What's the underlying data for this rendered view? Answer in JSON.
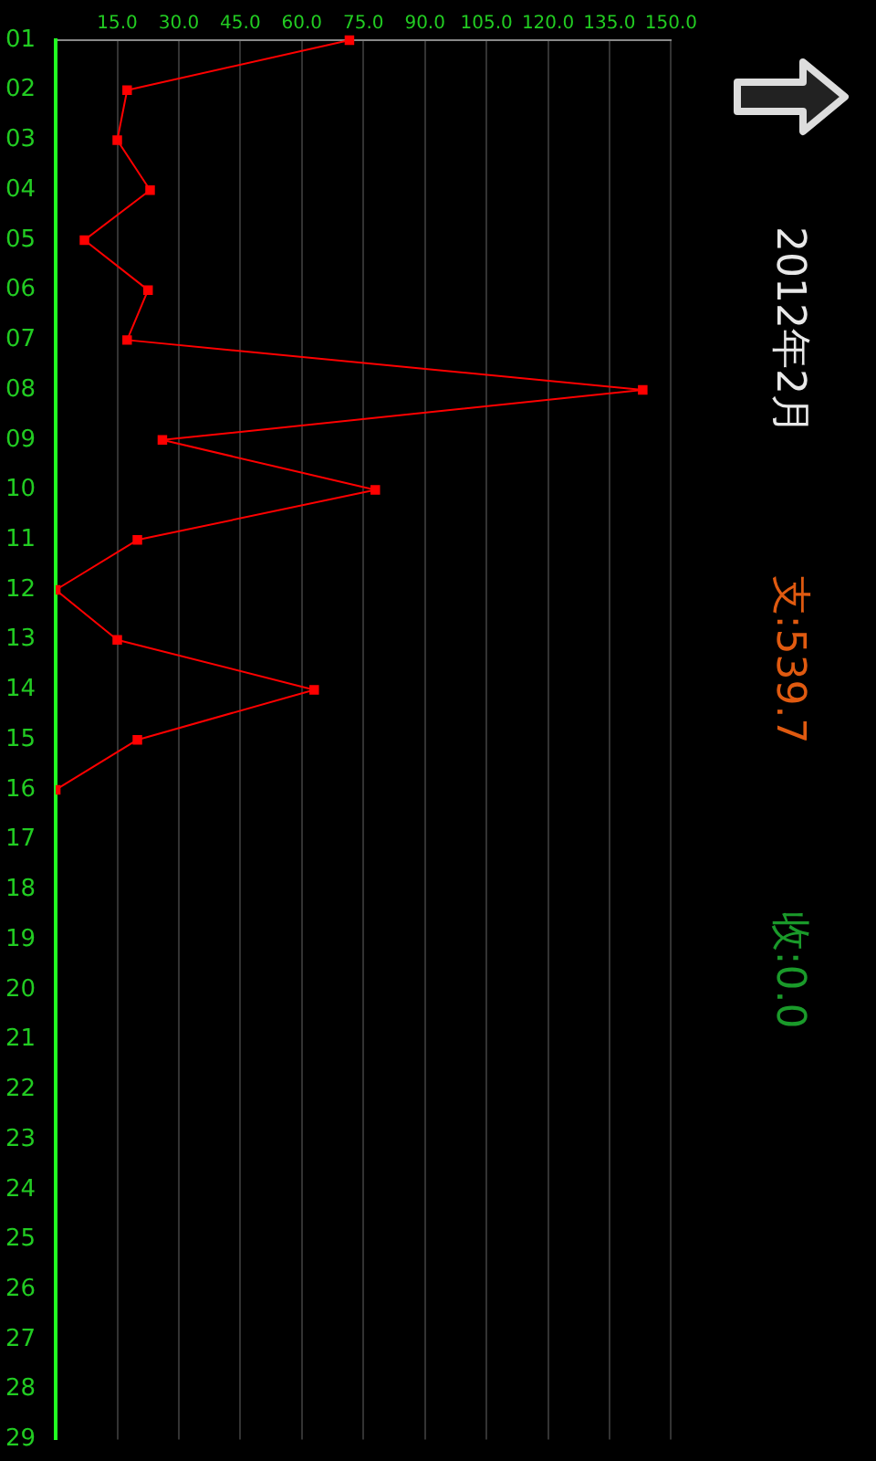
{
  "chart_data": {
    "type": "line",
    "title": "2012年2月",
    "annotations": [
      "支:539.7",
      "收:0.0"
    ],
    "orientation": "horizontal",
    "categories": [
      "01",
      "02",
      "03",
      "04",
      "05",
      "06",
      "07",
      "08",
      "09",
      "10",
      "11",
      "12",
      "13",
      "14",
      "15",
      "16",
      "17",
      "18",
      "19",
      "20",
      "21",
      "22",
      "23",
      "24",
      "25",
      "26",
      "27",
      "28",
      "29"
    ],
    "series": [
      {
        "color": "#ff0000",
        "values": [
          71.6,
          17.4,
          15,
          23,
          7,
          22.5,
          17.4,
          143.1,
          26,
          77.9,
          19.9,
          0,
          15,
          63,
          19.9,
          0,
          null,
          null,
          null,
          null,
          null,
          null,
          null,
          null,
          null,
          null,
          null,
          null,
          null
        ]
      }
    ],
    "xlim": [
      0,
      150
    ],
    "xticks": [
      {
        "value": 15,
        "label": "15.0"
      },
      {
        "value": 30,
        "label": "30.0"
      },
      {
        "value": 45,
        "label": "45.0"
      },
      {
        "value": 60,
        "label": "60.0"
      },
      {
        "value": 75,
        "label": "75.0"
      },
      {
        "value": 90,
        "label": "90.0"
      },
      {
        "value": 105,
        "label": "105.0"
      },
      {
        "value": 120,
        "label": "120.0"
      },
      {
        "value": 135,
        "label": "135.0"
      },
      {
        "value": 150,
        "label": "150.0"
      }
    ],
    "grid": "x",
    "legend": false,
    "marker": "square",
    "line_style": "solid"
  }
}
